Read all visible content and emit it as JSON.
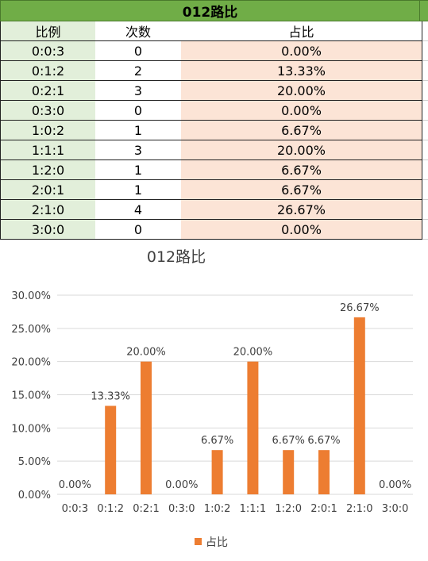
{
  "table": {
    "title": "012路比",
    "headers": [
      "比例",
      "次数",
      "占比"
    ],
    "rows": [
      [
        "0:0:3",
        "0",
        "0.00%"
      ],
      [
        "0:1:2",
        "2",
        "13.33%"
      ],
      [
        "0:2:1",
        "3",
        "20.00%"
      ],
      [
        "0:3:0",
        "0",
        "0.00%"
      ],
      [
        "1:0:2",
        "1",
        "6.67%"
      ],
      [
        "1:1:1",
        "3",
        "20.00%"
      ],
      [
        "1:2:0",
        "1",
        "6.67%"
      ],
      [
        "2:0:1",
        "1",
        "6.67%"
      ],
      [
        "2:1:0",
        "4",
        "26.67%"
      ],
      [
        "3:0:0",
        "0",
        "0.00%"
      ]
    ]
  },
  "chart_data": {
    "type": "bar",
    "title": "012路比",
    "categories": [
      "0:0:3",
      "0:1:2",
      "0:2:1",
      "0:3:0",
      "1:0:2",
      "1:1:1",
      "1:2:0",
      "2:0:1",
      "2:1:0",
      "3:0:0"
    ],
    "series": [
      {
        "name": "占比",
        "values": [
          0.0,
          13.33,
          20.0,
          0.0,
          6.67,
          20.0,
          6.67,
          6.67,
          26.67,
          0.0
        ],
        "color": "#ed7d31"
      }
    ],
    "data_labels": [
      "0.00%",
      "13.33%",
      "20.00%",
      "0.00%",
      "6.67%",
      "20.00%",
      "6.67%",
      "6.67%",
      "26.67%",
      "0.00%"
    ],
    "y_ticks": [
      "0.00%",
      "5.00%",
      "10.00%",
      "15.00%",
      "20.00%",
      "25.00%",
      "30.00%"
    ],
    "ylim": [
      0,
      30
    ],
    "grid": true,
    "legend_position": "bottom"
  },
  "colors": {
    "header_green": "#70ad47",
    "label_col_bg": "#e2efda",
    "value_col_bg": "#fce4d6",
    "bar": "#ed7d31",
    "gridline": "#d9d9d9"
  }
}
